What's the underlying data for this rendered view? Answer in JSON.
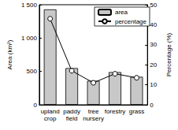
{
  "chart_data": {
    "type": "bar",
    "categories": [
      "upland crop",
      "paddy field",
      "tree nursery",
      "forestry",
      "grass"
    ],
    "ylabel": "Area (km²)",
    "y2label": "Percentage (%)",
    "ylim": [
      0,
      1500
    ],
    "yticks": [
      0,
      500,
      {
        "value": 1000,
        "label": "1 000"
      },
      {
        "value": 1500,
        "label": "1 500"
      }
    ],
    "y2lim": [
      0,
      50
    ],
    "y2ticks": [
      0,
      10,
      20,
      30,
      40,
      50
    ],
    "legend": "upper right",
    "series": [
      {
        "name": "area",
        "type": "bar",
        "color": "#c8c8c8",
        "values": [
          1430,
          550,
          360,
          490,
          420
        ]
      },
      {
        "name": "percentage",
        "type": "line",
        "axis": "y2",
        "color": "#000000",
        "marker": "circle",
        "values": [
          43,
          17,
          11,
          15.5,
          13.5
        ]
      }
    ]
  }
}
